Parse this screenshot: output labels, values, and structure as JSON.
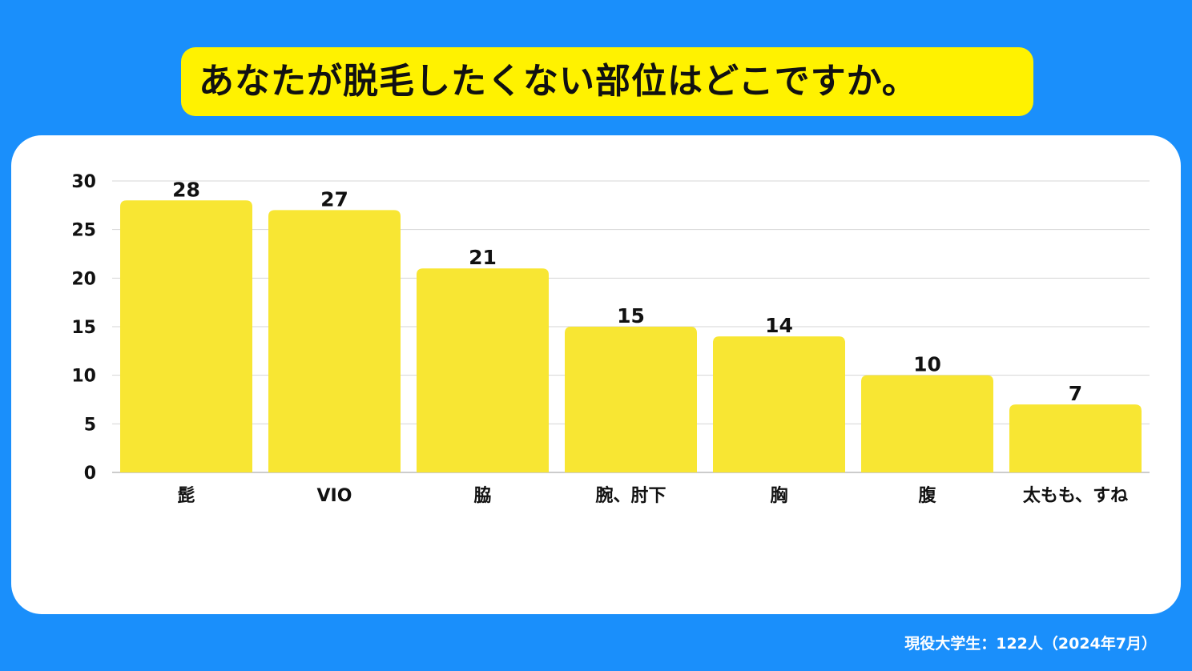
{
  "title": "あなたが脱毛したくない部位はどこですか。",
  "footer": "現役大学生：122人（2024年7月）",
  "colors": {
    "background": "#1a8ffb",
    "title_box": "#fff200",
    "bar": "#f8e633",
    "card": "#ffffff"
  },
  "chart_data": {
    "type": "bar",
    "categories": [
      "髭",
      "VIO",
      "脇",
      "腕、肘下",
      "胸",
      "腹",
      "太もも、すね"
    ],
    "values": [
      28,
      27,
      21,
      15,
      14,
      10,
      7
    ],
    "ylim": [
      0,
      30
    ],
    "yticks": [
      "0",
      "5",
      "10",
      "15",
      "20",
      "25",
      "30"
    ],
    "ytick_values": [
      0,
      5,
      10,
      15,
      20,
      25,
      30
    ],
    "grid": true,
    "data_labels": true
  }
}
